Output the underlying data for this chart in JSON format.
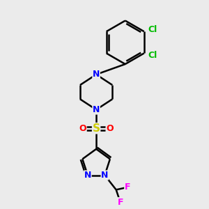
{
  "bg_color": "#ebebeb",
  "bond_color": "#000000",
  "bond_width": 1.8,
  "atom_colors": {
    "N": "#0000ff",
    "O": "#ff0000",
    "S": "#cccc00",
    "Cl": "#00bb00",
    "F": "#ff00ff",
    "C": "#000000"
  },
  "font_size": 9,
  "xlim": [
    0,
    10
  ],
  "ylim": [
    0,
    10
  ]
}
